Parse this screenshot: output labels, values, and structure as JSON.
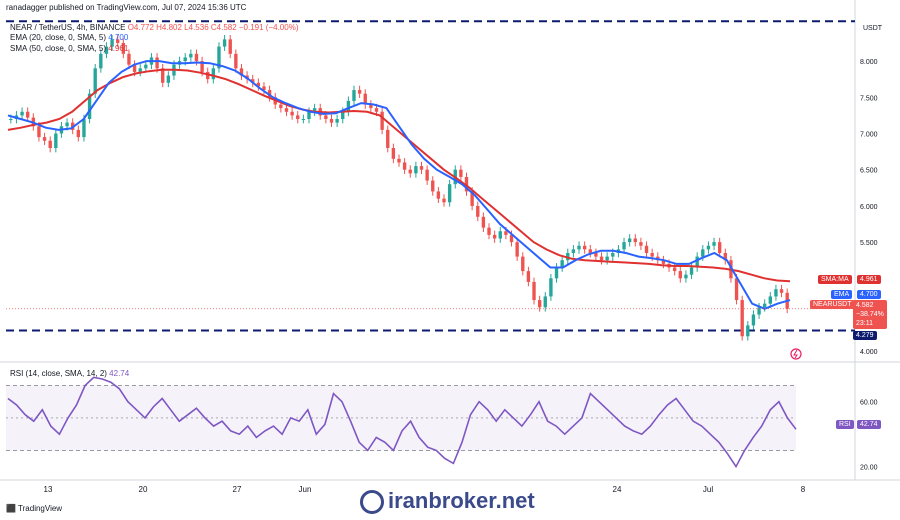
{
  "header": {
    "published": "ranadagger published on TradingView.com, Jul 07, 2024 15:36 UTC",
    "symbol_line": "NEAR / TetherUS, 4h, BINANCE",
    "ohlc": "O4.772  H4.802  L4.536  C4.582  −0.191 (−4.00%)",
    "ema_legend": "EMA (20, close, 0, SMA, 5)",
    "ema_value": "4.700",
    "sma_legend": "SMA (50, close, 0, SMA, 5)",
    "sma_value": "4.961",
    "currency": "USDT",
    "rsi_legend": "RSI (14, close, SMA, 14, 2)",
    "rsi_value": "42.74"
  },
  "tags": {
    "sma_label": "SMA:MA",
    "sma_val": "4.961",
    "ema_label": "EMA",
    "ema_val": "4.700",
    "pair_label": "NEARUSDT",
    "price": "4.582",
    "change": "−38.74%",
    "countdown": "23:11",
    "support": "4.279",
    "rsi_label": "RSI",
    "rsi_val": "42.74"
  },
  "branding": {
    "watermark": "iranbroker.net",
    "tv_logo": "TradingView"
  },
  "colors": {
    "ema": "#2962ff",
    "sma": "#e03131",
    "up": "#26a69a",
    "down": "#ef5350",
    "rsi": "#7e57c2",
    "support_line": "#0d1b6e"
  },
  "chart_data": {
    "type": "candlestick",
    "y_ticks": [
      "8.000",
      "7.500",
      "7.000",
      "6.500",
      "6.000",
      "5.500",
      "4.000"
    ],
    "y_tick_values": [
      8.0,
      7.5,
      7.0,
      6.5,
      6.0,
      5.5,
      4.0
    ],
    "ylim": [
      3.9,
      8.65
    ],
    "x_ticks": [
      "13",
      "20",
      "27",
      "Jun",
      "24",
      "Jul",
      "8"
    ],
    "rsi_ticks": [
      "60.00",
      "20.00"
    ],
    "rsi_tick_values": [
      60,
      20
    ],
    "rsi_ylim": [
      13,
      82
    ],
    "horizontal_levels": [
      4.279,
      8.55
    ],
    "close_series": [
      7.2,
      7.25,
      7.3,
      7.22,
      7.1,
      6.95,
      6.9,
      6.8,
      7.0,
      7.1,
      7.15,
      7.05,
      6.95,
      7.2,
      7.55,
      7.9,
      8.1,
      8.2,
      8.3,
      8.25,
      8.1,
      7.95,
      7.85,
      7.9,
      7.95,
      8.05,
      7.9,
      7.7,
      7.8,
      7.95,
      8.0,
      8.05,
      8.1,
      8.0,
      7.85,
      7.75,
      7.9,
      8.2,
      8.3,
      8.1,
      7.9,
      7.8,
      7.75,
      7.7,
      7.65,
      7.6,
      7.5,
      7.4,
      7.35,
      7.3,
      7.25,
      7.2,
      7.2,
      7.3,
      7.35,
      7.25,
      7.2,
      7.15,
      7.2,
      7.3,
      7.45,
      7.6,
      7.55,
      7.4,
      7.35,
      7.3,
      7.05,
      6.8,
      6.65,
      6.6,
      6.5,
      6.45,
      6.55,
      6.5,
      6.35,
      6.2,
      6.1,
      6.05,
      6.3,
      6.5,
      6.4,
      6.2,
      6.0,
      5.85,
      5.7,
      5.6,
      5.55,
      5.65,
      5.6,
      5.5,
      5.3,
      5.1,
      4.95,
      4.7,
      4.6,
      4.75,
      5.0,
      5.15,
      5.25,
      5.35,
      5.4,
      5.45,
      5.4,
      5.35,
      5.3,
      5.25,
      5.3,
      5.35,
      5.4,
      5.5,
      5.55,
      5.5,
      5.45,
      5.35,
      5.3,
      5.25,
      5.2,
      5.15,
      5.1,
      5.0,
      5.05,
      5.15,
      5.3,
      5.4,
      5.45,
      5.5,
      5.35,
      5.25,
      5.0,
      4.7,
      4.2,
      4.35,
      4.5,
      4.6,
      4.65,
      4.75,
      4.85,
      4.8,
      4.58
    ],
    "ema20_series": [
      7.25,
      7.2,
      7.15,
      7.08,
      7.05,
      7.07,
      7.2,
      7.45,
      7.7,
      7.85,
      7.95,
      8.0,
      8.0,
      7.97,
      7.97,
      7.98,
      7.97,
      7.93,
      7.87,
      7.76,
      7.62,
      7.5,
      7.42,
      7.35,
      7.3,
      7.27,
      7.28,
      7.35,
      7.42,
      7.4,
      7.35,
      7.1,
      6.85,
      6.65,
      6.5,
      6.4,
      6.3,
      6.15,
      5.95,
      5.75,
      5.6,
      5.45,
      5.3,
      5.15,
      5.15,
      5.25,
      5.33,
      5.38,
      5.38,
      5.35,
      5.3,
      5.28,
      5.25,
      5.2,
      5.2,
      5.28,
      5.35,
      5.25,
      4.95,
      4.65,
      4.58,
      4.65,
      4.7
    ],
    "sma50_series": [
      7.05,
      7.08,
      7.12,
      7.15,
      7.2,
      7.3,
      7.45,
      7.6,
      7.7,
      7.78,
      7.83,
      7.86,
      7.88,
      7.88,
      7.87,
      7.84,
      7.8,
      7.75,
      7.68,
      7.6,
      7.52,
      7.45,
      7.38,
      7.33,
      7.3,
      7.29,
      7.3,
      7.31,
      7.3,
      7.25,
      7.1,
      6.95,
      6.8,
      6.65,
      6.5,
      6.38,
      6.25,
      6.1,
      5.95,
      5.8,
      5.65,
      5.5,
      5.4,
      5.32,
      5.27,
      5.25,
      5.24,
      5.23,
      5.22,
      5.21,
      5.2,
      5.18,
      5.17,
      5.17,
      5.16,
      5.15,
      5.13,
      5.1,
      5.05,
      5.0,
      4.97,
      4.96
    ],
    "rsi_series": [
      62,
      58,
      52,
      48,
      55,
      45,
      40,
      50,
      58,
      70,
      75,
      74,
      72,
      68,
      60,
      55,
      50,
      57,
      62,
      55,
      48,
      52,
      56,
      50,
      45,
      48,
      42,
      40,
      45,
      38,
      42,
      45,
      40,
      50,
      48,
      55,
      40,
      46,
      65,
      60,
      48,
      35,
      30,
      38,
      35,
      30,
      42,
      48,
      38,
      32,
      30,
      25,
      22,
      35,
      52,
      60,
      55,
      48,
      55,
      50,
      45,
      52,
      60,
      48,
      45,
      40,
      45,
      50,
      65,
      60,
      55,
      50,
      45,
      42,
      40,
      45,
      52,
      58,
      62,
      55,
      48,
      45,
      40,
      35,
      28,
      20,
      30,
      38,
      45,
      55,
      60,
      50,
      43
    ],
    "rsi_band": [
      30,
      70
    ]
  }
}
